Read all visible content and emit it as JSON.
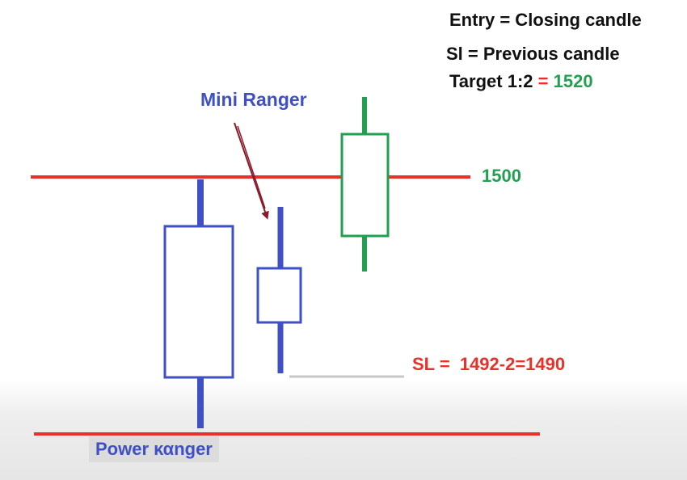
{
  "colors": {
    "blue": "#3f4fc4",
    "green": "#20a050",
    "red": "#e8312a",
    "arrow": "#8b1a2a",
    "text": "#111111"
  },
  "rules": {
    "entry": "Entry = Closing candle",
    "sl": "Sl = Previous candle",
    "target_prefix": "Target 1:2",
    "target_eq": "=",
    "target_value": "1520"
  },
  "labels": {
    "mini_ranger": "Mini Ranger",
    "level_1500": "1500",
    "sl_prefix": "SL",
    "sl_eq": "=",
    "sl_calc": "1492-2=1490",
    "power_ranger": "Power καnger"
  }
}
